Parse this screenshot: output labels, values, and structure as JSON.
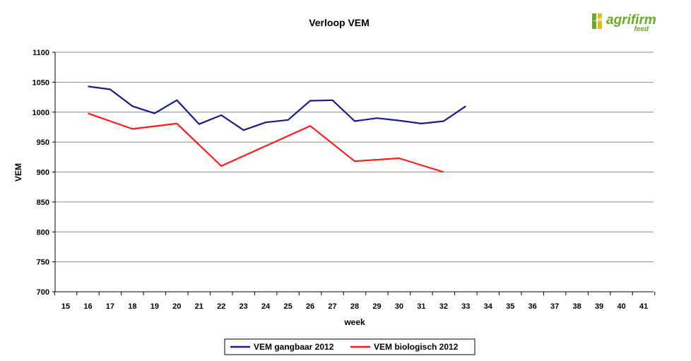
{
  "logo": {
    "name": "agrifirm",
    "sub": "feed"
  },
  "colors": {
    "accent": "#1a1a8c",
    "secondary": "#ff1a1a",
    "logo_green": "#6aaa2a"
  },
  "chart_data": {
    "type": "line",
    "title": "Verloop VEM",
    "xlabel": "week",
    "ylabel": "VEM",
    "x": [
      15,
      16,
      17,
      18,
      19,
      20,
      21,
      22,
      23,
      24,
      25,
      26,
      27,
      28,
      29,
      30,
      31,
      32,
      33,
      34,
      35,
      36,
      37,
      38,
      39,
      40,
      41
    ],
    "xlim": [
      15,
      41
    ],
    "ylim": [
      700,
      1100
    ],
    "yticks": [
      700,
      750,
      800,
      850,
      900,
      950,
      1000,
      1050,
      1100
    ],
    "grid": true,
    "legend_position": "bottom",
    "series": [
      {
        "name": "VEM gangbaar 2012",
        "color": "#1a1a8c",
        "points": [
          [
            16,
            1043
          ],
          [
            17,
            1038
          ],
          [
            18,
            1010
          ],
          [
            19,
            998
          ],
          [
            20,
            1020
          ],
          [
            21,
            980
          ],
          [
            22,
            995
          ],
          [
            23,
            970
          ],
          [
            24,
            983
          ],
          [
            25,
            987
          ],
          [
            26,
            1019
          ],
          [
            27,
            1020
          ],
          [
            28,
            985
          ],
          [
            29,
            990
          ],
          [
            30,
            986
          ],
          [
            31,
            981
          ],
          [
            32,
            985
          ],
          [
            33,
            1010
          ]
        ]
      },
      {
        "name": "VEM biologisch 2012",
        "color": "#ff1a1a",
        "points": [
          [
            16,
            998
          ],
          [
            18,
            972
          ],
          [
            20,
            981
          ],
          [
            22,
            910
          ],
          [
            26,
            977
          ],
          [
            28,
            918
          ],
          [
            30,
            923
          ],
          [
            32,
            900
          ]
        ]
      }
    ]
  }
}
